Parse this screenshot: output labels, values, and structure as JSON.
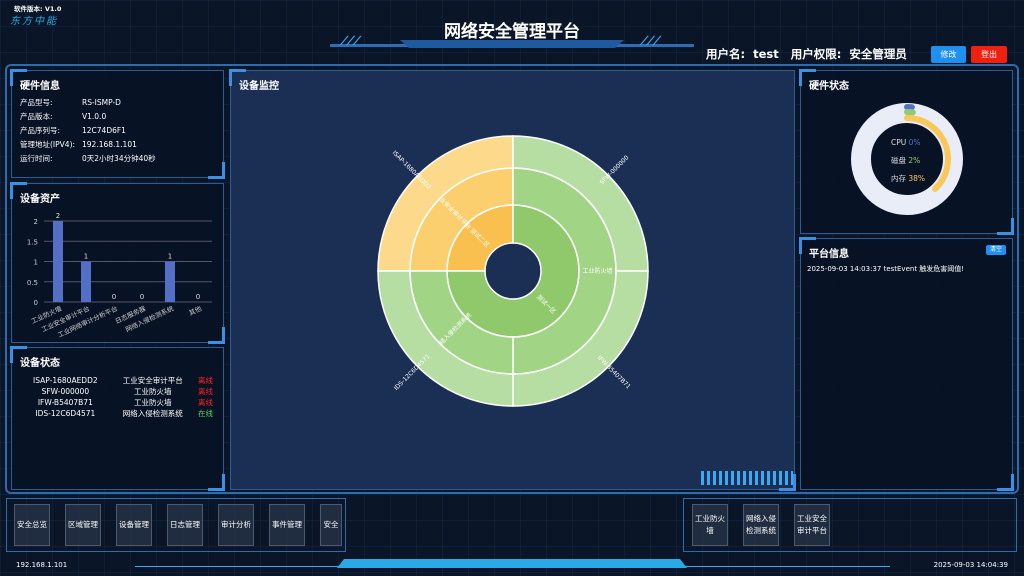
{
  "header": {
    "version": "软件版本: V1.0",
    "logo": "东方中能",
    "title": "网络安全管理平台",
    "user_label": "用户名:",
    "user": "test",
    "role_label": "用户权限:",
    "role": "安全管理员",
    "edit_btn": "修改",
    "logout_btn": "登出"
  },
  "hardware_info": {
    "title": "硬件信息",
    "rows": [
      {
        "k": "产品型号:",
        "v": "RS-ISMP-D"
      },
      {
        "k": "产品版本:",
        "v": "V1.0.0"
      },
      {
        "k": "产品序列号:",
        "v": "12C74D6F1"
      },
      {
        "k": "管理地址(IPV4):",
        "v": "192.168.1.101"
      },
      {
        "k": "运行时间:",
        "v": "0天2小时34分钟40秒"
      }
    ]
  },
  "assets": {
    "title": "设备资产"
  },
  "chart_data": [
    {
      "type": "bar",
      "categories": [
        "工业防火墙",
        "工业安全审计平台",
        "工业网络审计分析平台",
        "日志服务器",
        "网络入侵检测系统",
        "其他"
      ],
      "values": [
        2,
        1,
        0,
        0,
        1,
        0
      ],
      "ylim": [
        0,
        2
      ],
      "yticks": [
        "0",
        "0.5",
        "1",
        "1.5",
        "2"
      ],
      "color": "#5470c6",
      "grid": true
    },
    {
      "type": "sunburst",
      "rings": [
        [
          {
            "name": "测试二区",
            "value": 1,
            "color": "#f9c04f"
          },
          {
            "name": "测试一区",
            "value": 3,
            "color": "#8fc96b"
          }
        ],
        [
          {
            "name": "工业安全审计平台",
            "value": 1,
            "color": "#fbcf6e"
          },
          {
            "name": "工业防火墙",
            "value": 2,
            "color": "#a2d486"
          },
          {
            "name": "网络入侵检测系统",
            "value": 1,
            "color": "#a2d486"
          }
        ],
        [
          {
            "name": "ISAP-1680AEDD2",
            "value": 1,
            "color": "#fdd98b"
          },
          {
            "name": "SFW-000000",
            "value": 1,
            "color": "#b6dea2"
          },
          {
            "name": "IFW-B5407B71",
            "value": 1,
            "color": "#b6dea2"
          },
          {
            "name": "IDS-12C6D4571",
            "value": 1,
            "color": "#b6dea2"
          }
        ]
      ]
    },
    {
      "type": "gauge",
      "series": [
        {
          "name": "CPU",
          "value": 0,
          "color": "#5470c6"
        },
        {
          "name": "磁盘",
          "value": 2,
          "color": "#91cc75"
        },
        {
          "name": "内存",
          "value": 38,
          "color": "#fac858"
        }
      ]
    }
  ],
  "device_status": {
    "title": "设备状态",
    "rows": [
      {
        "id": "ISAP-1680AEDD2",
        "type": "工业安全审计平台",
        "status": "离线",
        "color": "#ff2020"
      },
      {
        "id": "SFW-000000",
        "type": "工业防火墙",
        "status": "离线",
        "color": "#ff2020"
      },
      {
        "id": "IFW-B5407B71",
        "type": "工业防火墙",
        "status": "离线",
        "color": "#ff2020"
      },
      {
        "id": "IDS-12C6D4571",
        "type": "网络入侵检测系统",
        "status": "在线",
        "color": "#5fd35f"
      }
    ]
  },
  "monitor": {
    "title": "设备监控"
  },
  "hw_status": {
    "title": "硬件状态",
    "cpu_label": "CPU",
    "cpu": "0%",
    "disk_label": "磁盘",
    "disk": "2%",
    "mem_label": "内存",
    "mem": "38%"
  },
  "platform": {
    "title": "平台信息",
    "clear_btn": "清空",
    "messages": [
      "2025-09-03 14:03:37 testEvent 触发危害阈值!"
    ]
  },
  "nav_left": [
    "安全总览",
    "区域管理",
    "设备管理",
    "日志管理",
    "审计分析",
    "事件管理",
    "安全"
  ],
  "nav_right": [
    "工业防火墙",
    "网络入侵检测系统",
    "工业安全审计平台"
  ],
  "footer": {
    "ip": "192.168.1.101",
    "time": "2025-09-03 14:04:39"
  }
}
